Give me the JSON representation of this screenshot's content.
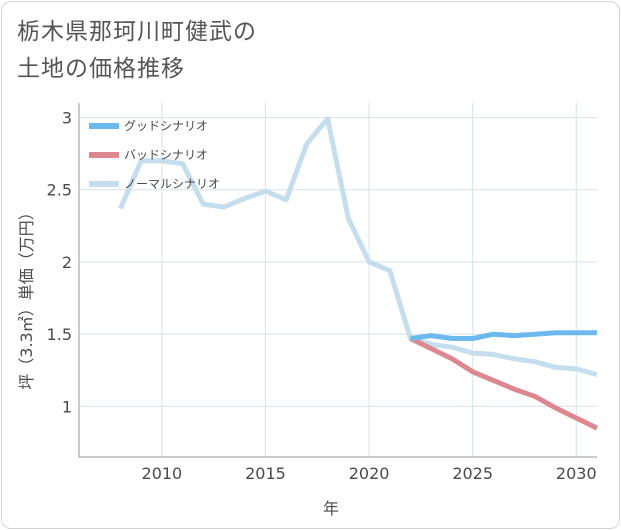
{
  "chart_data": {
    "type": "line",
    "title": "栃木県那珂川町健武の\n土地の価格推移",
    "xlabel": "年",
    "ylabel": "坪（3.3㎡）単価（万円）",
    "xlim": [
      2006,
      2031
    ],
    "ylim": [
      0.65,
      3.1
    ],
    "x_ticks": [
      2010,
      2015,
      2020,
      2025,
      2030
    ],
    "y_ticks": [
      1,
      1.5,
      2,
      2.5,
      3
    ],
    "x_tick_labels": [
      "2010",
      "2015",
      "2020",
      "2025",
      "2030"
    ],
    "y_tick_labels": [
      "1",
      "1.5",
      "2",
      "2.5",
      "3"
    ],
    "grid": true,
    "legend_position": "top-left",
    "series": [
      {
        "name": "グッドシナリオ",
        "color": "#6cb9ee",
        "x": [
          2022,
          2023,
          2024,
          2025,
          2026,
          2027,
          2028,
          2029,
          2030,
          2031
        ],
        "values": [
          1.47,
          1.49,
          1.47,
          1.47,
          1.5,
          1.49,
          1.5,
          1.51,
          1.51,
          1.51
        ]
      },
      {
        "name": "バッドシナリオ",
        "color": "#dd8891",
        "x": [
          2022,
          2023,
          2024,
          2025,
          2026,
          2027,
          2028,
          2029,
          2030,
          2031
        ],
        "values": [
          1.47,
          1.4,
          1.33,
          1.24,
          1.18,
          1.12,
          1.07,
          0.99,
          0.92,
          0.85
        ]
      },
      {
        "name": "ノーマルシナリオ",
        "color": "#c4deed",
        "x": [
          2008,
          2009,
          2010,
          2011,
          2012,
          2013,
          2014,
          2015,
          2016,
          2017,
          2018,
          2019,
          2020,
          2021,
          2022,
          2023,
          2024,
          2025,
          2026,
          2027,
          2028,
          2029,
          2030,
          2031
        ],
        "values": [
          2.37,
          2.7,
          2.7,
          2.68,
          2.4,
          2.38,
          2.44,
          2.49,
          2.43,
          2.82,
          2.99,
          2.3,
          2.0,
          1.94,
          1.47,
          1.43,
          1.41,
          1.37,
          1.36,
          1.33,
          1.31,
          1.27,
          1.26,
          1.22
        ]
      }
    ]
  }
}
